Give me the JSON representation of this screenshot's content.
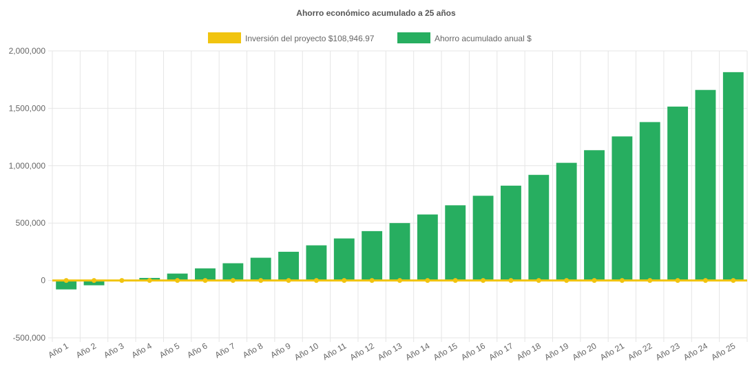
{
  "chart_data": {
    "type": "bar",
    "title": "Ahorro económico acumulado a 25 años",
    "categories": [
      "Año 1",
      "Año 2",
      "Año 3",
      "Año 4",
      "Año 5",
      "Año 6",
      "Año 7",
      "Año 8",
      "Año 9",
      "Año 10",
      "Año 11",
      "Año 12",
      "Año 13",
      "Año 14",
      "Año 15",
      "Año 16",
      "Año 17",
      "Año 18",
      "Año 19",
      "Año 20",
      "Año 21",
      "Año 22",
      "Año 23",
      "Año 24",
      "Año 25"
    ],
    "series": [
      {
        "name": "Inversión del proyecto $108,946.97",
        "kind": "line",
        "color": "#f1c40f",
        "values": [
          0,
          0,
          0,
          0,
          0,
          0,
          0,
          0,
          0,
          0,
          0,
          0,
          0,
          0,
          0,
          0,
          0,
          0,
          0,
          0,
          0,
          0,
          0,
          0,
          0
        ]
      },
      {
        "name": "Ahorro acumulado anual $",
        "kind": "bar",
        "color": "#27ae60",
        "values": [
          -78000,
          -42000,
          -5000,
          22000,
          60000,
          105000,
          150000,
          198000,
          250000,
          306000,
          366000,
          430000,
          500000,
          575000,
          655000,
          738000,
          826000,
          920000,
          1025000,
          1135000,
          1255000,
          1380000,
          1515000,
          1660000,
          1815000
        ]
      }
    ],
    "ylim": [
      -500000,
      2000000
    ],
    "yticks": [
      -500000,
      0,
      500000,
      1000000,
      1500000,
      2000000
    ],
    "ytick_labels": [
      "-500,000",
      "0",
      "500,000",
      "1,000,000",
      "1,500,000",
      "2,000,000"
    ],
    "grid": true,
    "legend": "top-center"
  }
}
